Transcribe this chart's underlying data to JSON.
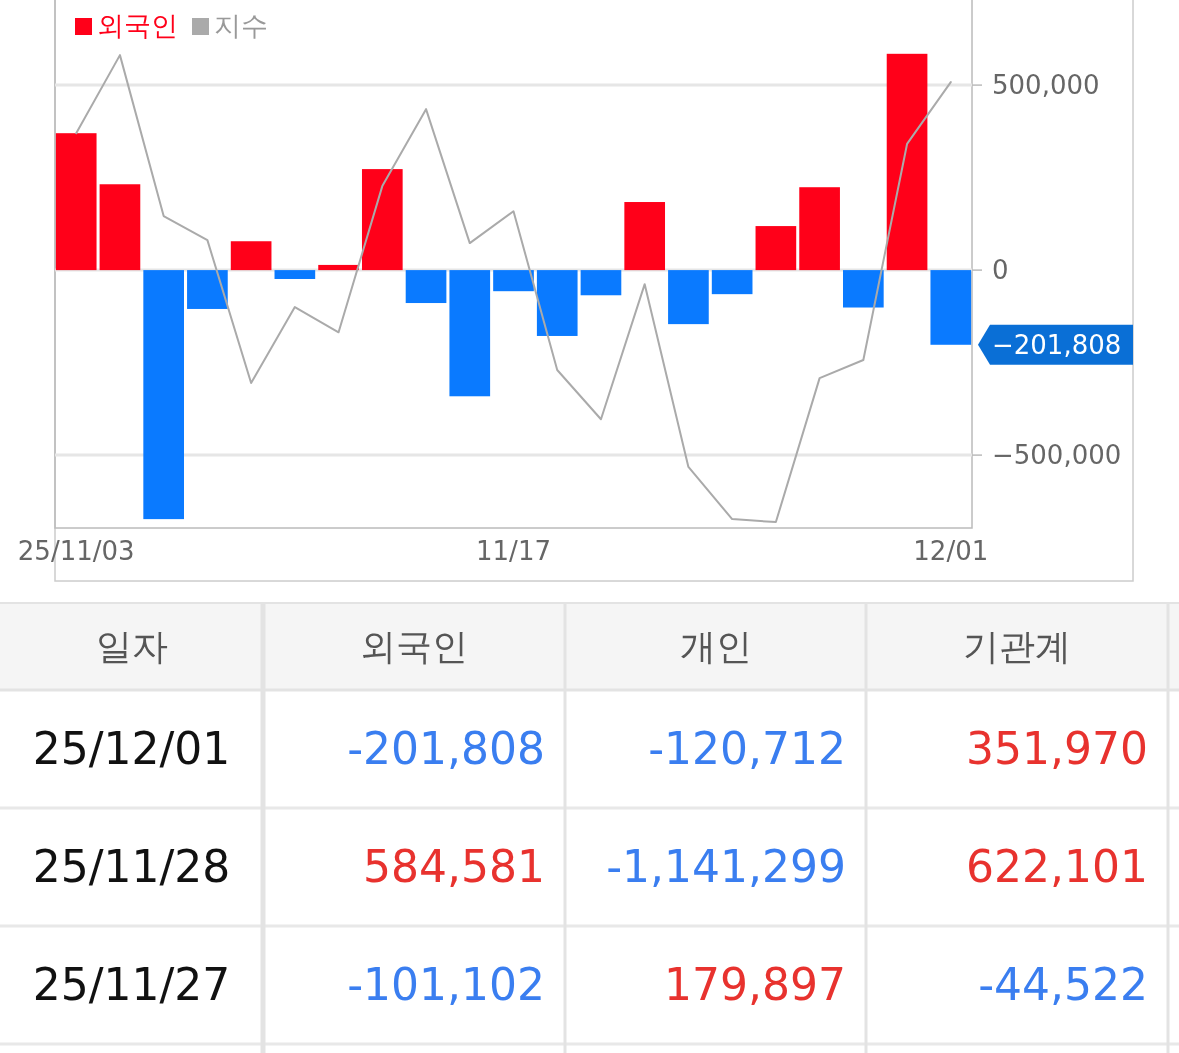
{
  "chart_data": [
    {
      "type": "bar",
      "categories": [
        "25/11/03",
        null,
        null,
        null,
        null,
        null,
        null,
        null,
        null,
        null,
        "11/17",
        null,
        null,
        null,
        null,
        null,
        null,
        null,
        null,
        null,
        "12/01"
      ],
      "series": [
        {
          "name": "외국인",
          "type": "bar",
          "color": "#ff0019",
          "colors": [
            "#ff0019",
            "#ff0019",
            "#0a7aff",
            "#0a7aff",
            "#ff0019",
            "#0a7aff",
            "#ff0019",
            "#ff0019",
            "#0a7aff",
            "#0a7aff",
            "#0a7aff",
            "#0a7aff",
            "#0a7aff",
            "#ff0019",
            "#0a7aff",
            "#0a7aff",
            "#ff0019",
            "#ff0019",
            "#0a7aff",
            "#ff0019",
            "#0a7aff"
          ],
          "values": [
            370000,
            232000,
            -673000,
            -105000,
            78000,
            -24000,
            14000,
            273000,
            -89000,
            -341000,
            -57000,
            -178000,
            -68000,
            184000,
            -146000,
            -65000,
            119000,
            224000,
            -101102,
            584581,
            -201808
          ]
        },
        {
          "name": "지수",
          "type": "line",
          "color": "#aaaaaa",
          "values": [
            370000,
            581000,
            146000,
            81000,
            -305000,
            -100000,
            -168000,
            227000,
            435000,
            73000,
            159000,
            -270000,
            -403000,
            -38000,
            -532000,
            -673000,
            -681000,
            -292000,
            -243000,
            341000,
            508000
          ]
        }
      ],
      "ylim": [
        -697000,
        730000
      ],
      "yticks": [
        {
          "value": -500000,
          "label": "−500,000"
        },
        0,
        {
          "value": 500000,
          "label": "500,000"
        }
      ],
      "grid": "y",
      "legend": "top left",
      "annotations": [
        "−201,808"
      ]
    },
    {
      "type": "heatmap",
      "ylabel": "일자",
      "categories": [
        "외국인",
        "개인",
        "기관계"
      ],
      "y_categories": [
        "25/12/01",
        "25/11/28",
        "25/11/27"
      ],
      "cells": [
        [
          -201808,
          -120712,
          351970
        ],
        [
          584581,
          -1141299,
          622101
        ],
        [
          -101102,
          179897,
          -44522
        ]
      ],
      "cell_labels": [
        [
          "-201,808",
          "-120,712",
          "351,970"
        ],
        [
          "584,581",
          "-1,141,299",
          "622,101"
        ],
        [
          "-101,102",
          "179,897",
          "-44,522"
        ]
      ],
      "data_labels": true
    }
  ]
}
